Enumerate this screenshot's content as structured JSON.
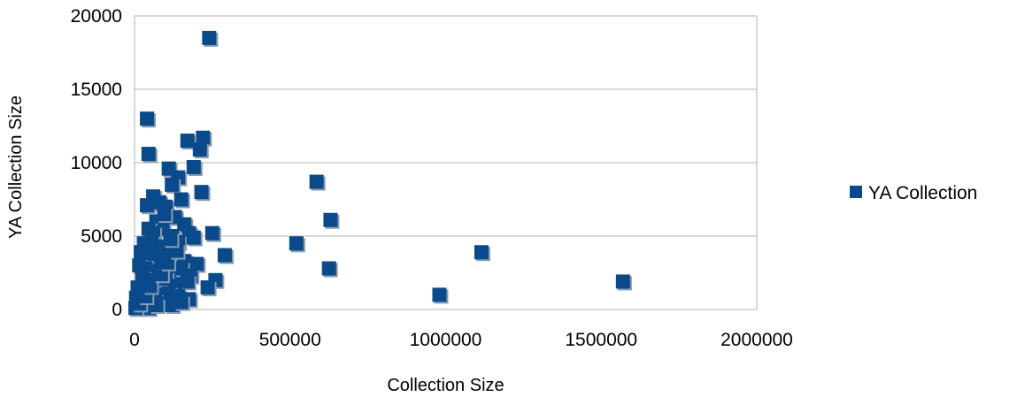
{
  "chart_data": {
    "type": "scatter",
    "title": "",
    "xlabel": "Collection Size",
    "ylabel": "YA Collection Size",
    "xlim": [
      0,
      2000000
    ],
    "ylim": [
      0,
      20000
    ],
    "x_ticks": [
      "0",
      "500000",
      "1000000",
      "1500000",
      "2000000"
    ],
    "y_ticks": [
      "0",
      "5000",
      "10000",
      "15000",
      "20000"
    ],
    "grid": "horizontal",
    "legend_position": "right",
    "marker": "square",
    "series": [
      {
        "name": "YA Collection",
        "color": "#0b4a8a",
        "points": [
          [
            240000,
            18500
          ],
          [
            40000,
            13000
          ],
          [
            45000,
            10600
          ],
          [
            220000,
            11700
          ],
          [
            170000,
            11500
          ],
          [
            210000,
            10900
          ],
          [
            110000,
            9600
          ],
          [
            190000,
            9700
          ],
          [
            140000,
            9000
          ],
          [
            120000,
            8500
          ],
          [
            60000,
            7700
          ],
          [
            40000,
            7100
          ],
          [
            80000,
            7300
          ],
          [
            100000,
            7000
          ],
          [
            150000,
            7500
          ],
          [
            215000,
            8000
          ],
          [
            130000,
            6300
          ],
          [
            70000,
            6000
          ],
          [
            160000,
            5800
          ],
          [
            90000,
            5500
          ],
          [
            45000,
            5500
          ],
          [
            60000,
            5200
          ],
          [
            120000,
            5000
          ],
          [
            175000,
            5200
          ],
          [
            250000,
            5200
          ],
          [
            30000,
            4500
          ],
          [
            55000,
            4600
          ],
          [
            100000,
            4300
          ],
          [
            140000,
            4600
          ],
          [
            190000,
            4900
          ],
          [
            20000,
            3900
          ],
          [
            40000,
            3600
          ],
          [
            65000,
            3800
          ],
          [
            85000,
            3400
          ],
          [
            110000,
            3700
          ],
          [
            160000,
            3300
          ],
          [
            200000,
            3100
          ],
          [
            290000,
            3700
          ],
          [
            15000,
            3000
          ],
          [
            35000,
            2800
          ],
          [
            60000,
            2600
          ],
          [
            90000,
            2900
          ],
          [
            125000,
            2500
          ],
          [
            150000,
            2800
          ],
          [
            180000,
            2300
          ],
          [
            25000,
            2200
          ],
          [
            50000,
            2000
          ],
          [
            75000,
            1800
          ],
          [
            100000,
            2100
          ],
          [
            130000,
            1600
          ],
          [
            170000,
            1900
          ],
          [
            260000,
            2000
          ],
          [
            235000,
            1500
          ],
          [
            10000,
            1500
          ],
          [
            30000,
            1300
          ],
          [
            55000,
            1200
          ],
          [
            80000,
            1000
          ],
          [
            110000,
            1100
          ],
          [
            140000,
            900
          ],
          [
            175000,
            700
          ],
          [
            5000,
            800
          ],
          [
            20000,
            700
          ],
          [
            40000,
            500
          ],
          [
            65000,
            600
          ],
          [
            95000,
            400
          ],
          [
            120000,
            300
          ],
          [
            150000,
            500
          ],
          [
            8000,
            300
          ],
          [
            25000,
            200
          ],
          [
            45000,
            100
          ],
          [
            70000,
            300
          ],
          [
            3000,
            100
          ],
          [
            15000,
            400
          ],
          [
            35000,
            900
          ],
          [
            50000,
            1600
          ],
          [
            85000,
            2400
          ],
          [
            105000,
            3200
          ],
          [
            135000,
            4000
          ],
          [
            115000,
            4800
          ],
          [
            95000,
            6500
          ],
          [
            520000,
            4500
          ],
          [
            585000,
            8700
          ],
          [
            630000,
            6100
          ],
          [
            625000,
            2800
          ],
          [
            980000,
            1000
          ],
          [
            1115000,
            3900
          ],
          [
            1570000,
            1900
          ]
        ]
      }
    ]
  }
}
